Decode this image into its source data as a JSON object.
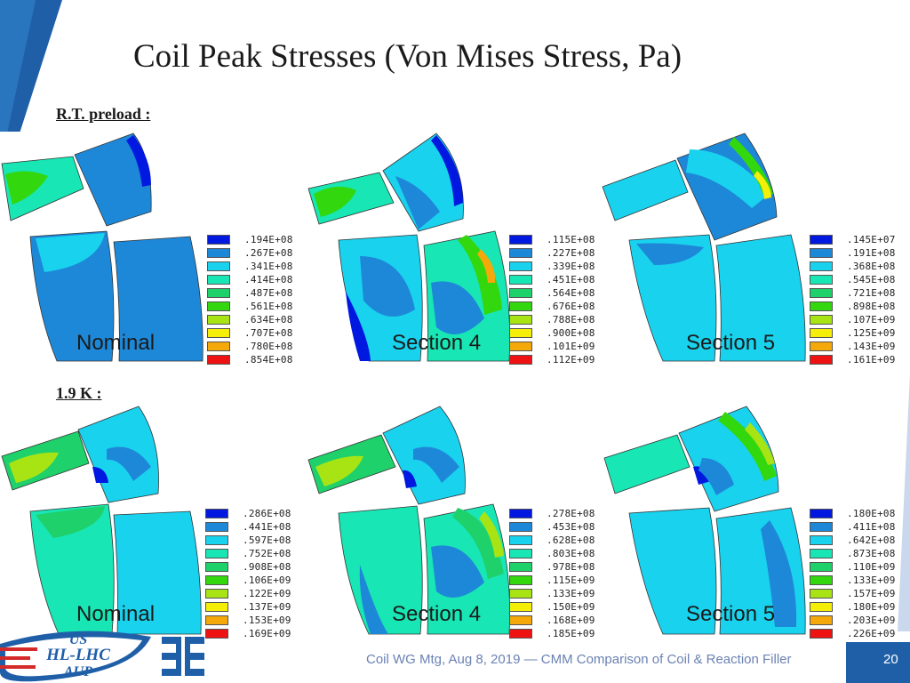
{
  "slide": {
    "title": "Coil Peak Stresses (Von Mises Stress, Pa)",
    "section_rt": "R.T. preload :",
    "section_cold": "1.9 K :",
    "footer": "Coil WG Mtg, Aug 8, 2019 — CMM Comparison of Coil & Reaction Filler",
    "page_number": "20"
  },
  "colors": {
    "legend": [
      "#0018e0",
      "#1e88d8",
      "#19d2ee",
      "#18e6b4",
      "#1ed16a",
      "#32d70e",
      "#a8e414",
      "#f4ee08",
      "#f4a80a",
      "#ee1212"
    ],
    "accent_blue": "#1f5fa8"
  },
  "logos": {
    "us_top": "US",
    "us_mid": "HL-LHC",
    "us_bottom": "AUP"
  },
  "panels": {
    "rt": [
      {
        "case": "Nominal",
        "legend": [
          ".194E+08",
          ".267E+08",
          ".341E+08",
          ".414E+08",
          ".487E+08",
          ".561E+08",
          ".634E+08",
          ".707E+08",
          ".780E+08",
          ".854E+08"
        ]
      },
      {
        "case": "Section 4",
        "legend": [
          ".115E+08",
          ".227E+08",
          ".339E+08",
          ".451E+08",
          ".564E+08",
          ".676E+08",
          ".788E+08",
          ".900E+08",
          ".101E+09",
          ".112E+09"
        ]
      },
      {
        "case": "Section 5",
        "legend": [
          ".145E+07",
          ".191E+08",
          ".368E+08",
          ".545E+08",
          ".721E+08",
          ".898E+08",
          ".107E+09",
          ".125E+09",
          ".143E+09",
          ".161E+09"
        ]
      }
    ],
    "cold": [
      {
        "case": "Nominal",
        "legend": [
          ".286E+08",
          ".441E+08",
          ".597E+08",
          ".752E+08",
          ".908E+08",
          ".106E+09",
          ".122E+09",
          ".137E+09",
          ".153E+09",
          ".169E+09"
        ]
      },
      {
        "case": "Section 4",
        "legend": [
          ".278E+08",
          ".453E+08",
          ".628E+08",
          ".803E+08",
          ".978E+08",
          ".115E+09",
          ".133E+09",
          ".150E+09",
          ".168E+09",
          ".185E+09"
        ]
      },
      {
        "case": "Section 5",
        "legend": [
          ".180E+08",
          ".411E+08",
          ".642E+08",
          ".873E+08",
          ".110E+09",
          ".133E+09",
          ".157E+09",
          ".180E+09",
          ".203E+09",
          ".226E+09"
        ]
      }
    ]
  }
}
